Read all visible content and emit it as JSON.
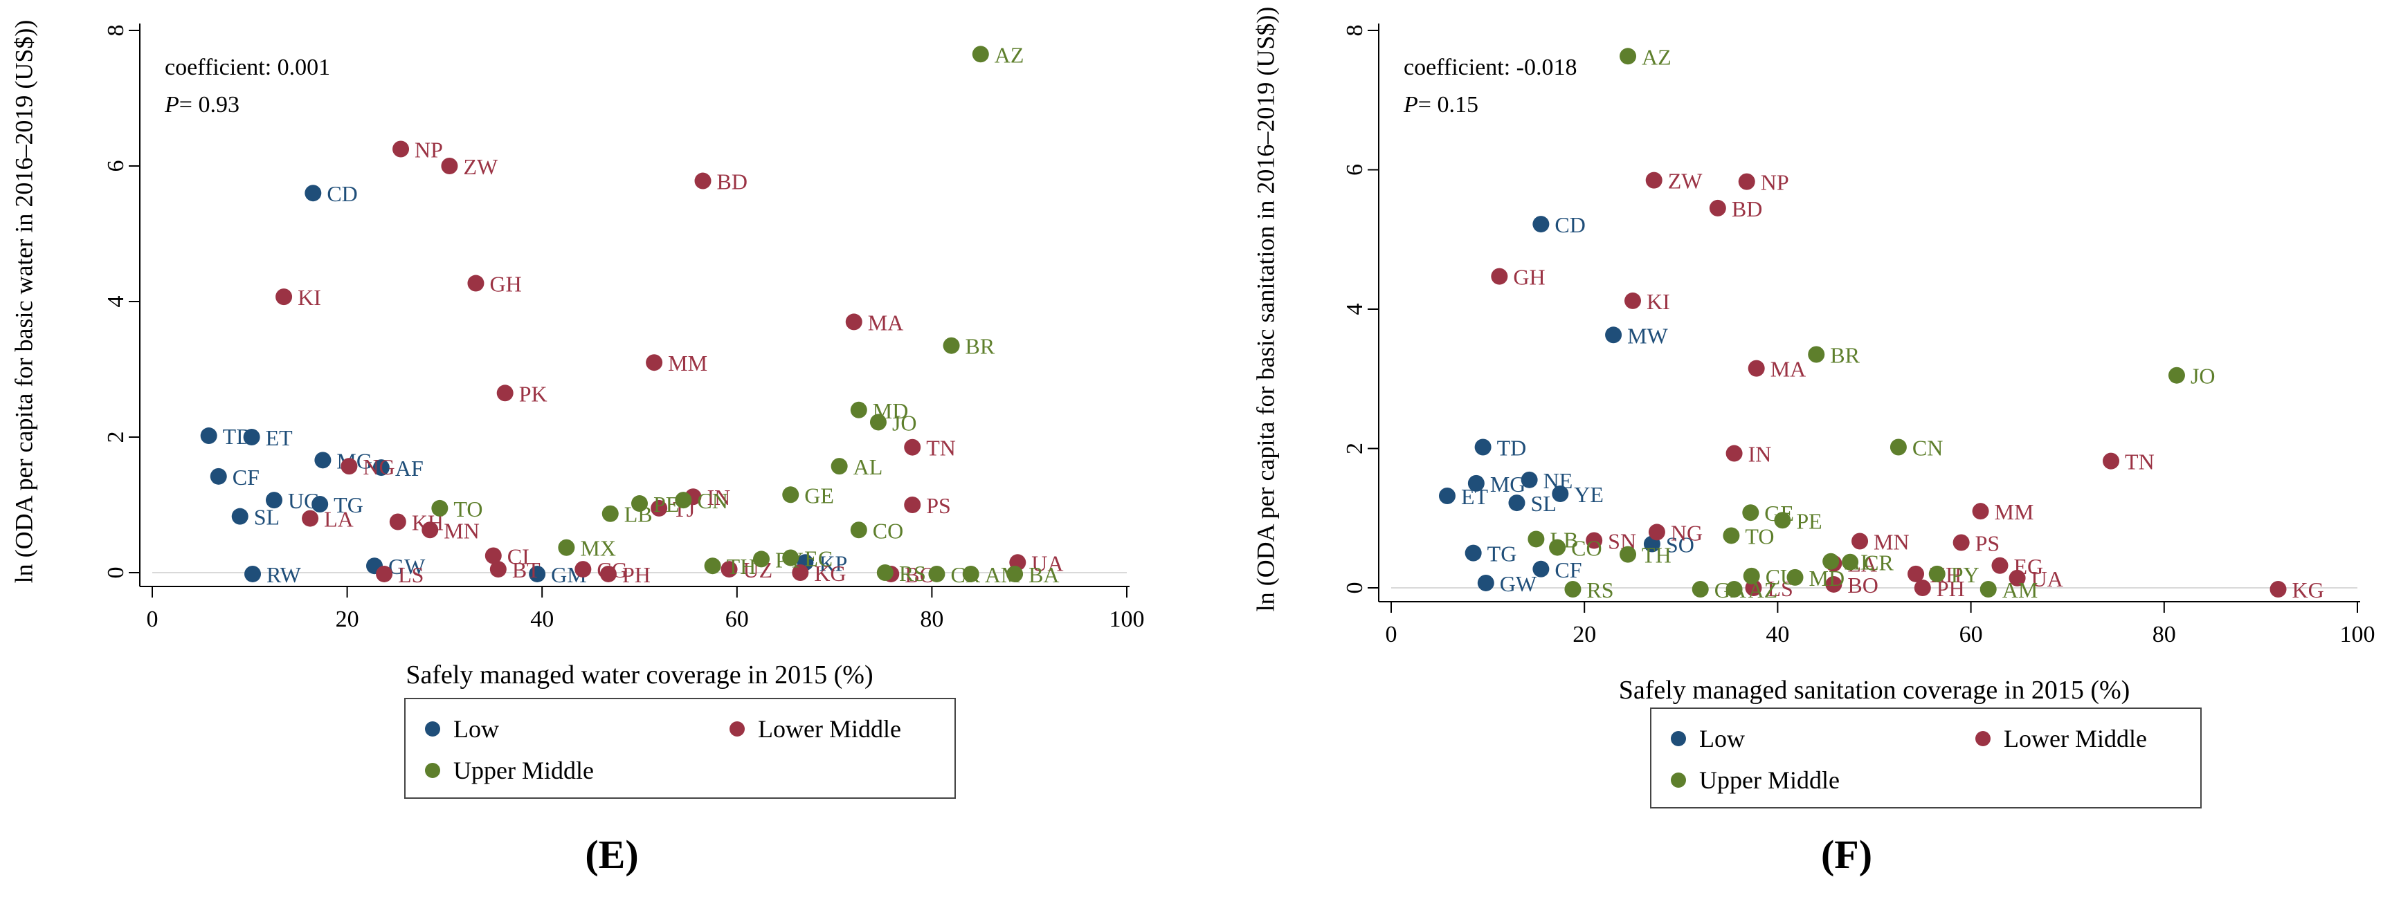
{
  "colors": {
    "Low": "#1f4e79",
    "Lower Middle": "#9b3344",
    "Upper Middle": "#5e7f2c",
    "axis": "#000000",
    "zero_line": "#d9d9d9",
    "legend_border": "#444444"
  },
  "chart_data": [
    {
      "type": "scatter",
      "panel": "E",
      "panel_label": "(E)",
      "xlabel": "Safely managed water coverage in 2015 (%)",
      "ylabel": "ln (ODA per capita for basic water in 2016–2019 (US$))",
      "xlim": [
        0,
        100
      ],
      "ylim": [
        0,
        8
      ],
      "xticks": [
        0,
        20,
        40,
        60,
        80,
        100
      ],
      "yticks": [
        0,
        2,
        4,
        6,
        8
      ],
      "annotation": {
        "coef_text": "coefficient: 0.001",
        "p_label": "P",
        "p_value": "= 0.93"
      },
      "legend": {
        "title": "",
        "entries": [
          "Low",
          "Lower Middle",
          "Upper Middle"
        ]
      },
      "points": [
        {
          "label": "CD",
          "group": "Low",
          "x": 16.5,
          "y": 5.6
        },
        {
          "label": "TD",
          "group": "Low",
          "x": 5.8,
          "y": 2.02
        },
        {
          "label": "ET",
          "group": "Low",
          "x": 10.2,
          "y": 2.0
        },
        {
          "label": "CF",
          "group": "Low",
          "x": 6.8,
          "y": 1.42
        },
        {
          "label": "MG",
          "group": "Low",
          "x": 17.5,
          "y": 1.66
        },
        {
          "label": "AF",
          "group": "Low",
          "x": 23.5,
          "y": 1.55
        },
        {
          "label": "UG",
          "group": "Low",
          "x": 12.5,
          "y": 1.07
        },
        {
          "label": "TG",
          "group": "Low",
          "x": 17.2,
          "y": 1.01
        },
        {
          "label": "SL",
          "group": "Low",
          "x": 9.0,
          "y": 0.83
        },
        {
          "label": "RW",
          "group": "Low",
          "x": 10.3,
          "y": -0.02
        },
        {
          "label": "GW",
          "group": "Low",
          "x": 22.8,
          "y": 0.1
        },
        {
          "label": "GM",
          "group": "Low",
          "x": 39.5,
          "y": -0.02
        },
        {
          "label": "KP",
          "group": "Low",
          "x": 67.0,
          "y": 0.15
        },
        {
          "label": "NP",
          "group": "Lower Middle",
          "x": 25.5,
          "y": 6.25
        },
        {
          "label": "ZW",
          "group": "Lower Middle",
          "x": 30.5,
          "y": 6.0
        },
        {
          "label": "BD",
          "group": "Lower Middle",
          "x": 56.5,
          "y": 5.78
        },
        {
          "label": "KI",
          "group": "Lower Middle",
          "x": 13.5,
          "y": 4.07
        },
        {
          "label": "GH",
          "group": "Lower Middle",
          "x": 33.2,
          "y": 4.27
        },
        {
          "label": "MA",
          "group": "Lower Middle",
          "x": 72.0,
          "y": 3.7
        },
        {
          "label": "MM",
          "group": "Lower Middle",
          "x": 51.5,
          "y": 3.1
        },
        {
          "label": "PK",
          "group": "Lower Middle",
          "x": 36.2,
          "y": 2.65
        },
        {
          "label": "TN",
          "group": "Lower Middle",
          "x": 78.0,
          "y": 1.85
        },
        {
          "label": "NG",
          "group": "Lower Middle",
          "x": 20.2,
          "y": 1.57
        },
        {
          "label": "PS",
          "group": "Lower Middle",
          "x": 78.0,
          "y": 1.0
        },
        {
          "label": "LA",
          "group": "Lower Middle",
          "x": 16.2,
          "y": 0.8
        },
        {
          "label": "KH",
          "group": "Lower Middle",
          "x": 25.2,
          "y": 0.75
        },
        {
          "label": "MN",
          "group": "Lower Middle",
          "x": 28.5,
          "y": 0.63
        },
        {
          "label": "CI",
          "group": "Lower Middle",
          "x": 35.0,
          "y": 0.25
        },
        {
          "label": "BT",
          "group": "Lower Middle",
          "x": 35.5,
          "y": 0.05
        },
        {
          "label": "LS",
          "group": "Lower Middle",
          "x": 23.8,
          "y": -0.02
        },
        {
          "label": "CG",
          "group": "Lower Middle",
          "x": 44.2,
          "y": 0.05
        },
        {
          "label": "PH",
          "group": "Lower Middle",
          "x": 46.8,
          "y": -0.02
        },
        {
          "label": "TJ",
          "group": "Lower Middle",
          "x": 52.0,
          "y": 0.95
        },
        {
          "label": "IN",
          "group": "Lower Middle",
          "x": 55.5,
          "y": 1.12
        },
        {
          "label": "UZ",
          "group": "Lower Middle",
          "x": 59.2,
          "y": 0.05
        },
        {
          "label": "KG",
          "group": "Lower Middle",
          "x": 66.5,
          "y": 0.0
        },
        {
          "label": "BO",
          "group": "Lower Middle",
          "x": 75.8,
          "y": -0.02
        },
        {
          "label": "UA",
          "group": "Lower Middle",
          "x": 88.8,
          "y": 0.15
        },
        {
          "label": "AZ",
          "group": "Upper Middle",
          "x": 85.0,
          "y": 7.65
        },
        {
          "label": "BR",
          "group": "Upper Middle",
          "x": 82.0,
          "y": 3.35
        },
        {
          "label": "MD",
          "group": "Upper Middle",
          "x": 72.5,
          "y": 2.4
        },
        {
          "label": "JO",
          "group": "Upper Middle",
          "x": 74.5,
          "y": 2.22
        },
        {
          "label": "AL",
          "group": "Upper Middle",
          "x": 70.5,
          "y": 1.57
        },
        {
          "label": "GE",
          "group": "Upper Middle",
          "x": 65.5,
          "y": 1.15
        },
        {
          "label": "TO",
          "group": "Upper Middle",
          "x": 29.5,
          "y": 0.95
        },
        {
          "label": "LB",
          "group": "Upper Middle",
          "x": 47.0,
          "y": 0.87
        },
        {
          "label": "PE",
          "group": "Upper Middle",
          "x": 50.0,
          "y": 1.02
        },
        {
          "label": "CN",
          "group": "Upper Middle",
          "x": 54.5,
          "y": 1.07
        },
        {
          "label": "CO",
          "group": "Upper Middle",
          "x": 72.5,
          "y": 0.63
        },
        {
          "label": "MX",
          "group": "Upper Middle",
          "x": 42.5,
          "y": 0.37
        },
        {
          "label": "PY",
          "group": "Upper Middle",
          "x": 62.5,
          "y": 0.2
        },
        {
          "label": "EC",
          "group": "Upper Middle",
          "x": 65.5,
          "y": 0.22
        },
        {
          "label": "TH",
          "group": "Upper Middle",
          "x": 57.5,
          "y": 0.1
        },
        {
          "label": "RS",
          "group": "Upper Middle",
          "x": 75.2,
          "y": 0.0
        },
        {
          "label": "CR",
          "group": "Upper Middle",
          "x": 80.5,
          "y": -0.02
        },
        {
          "label": "AM",
          "group": "Upper Middle",
          "x": 84.0,
          "y": -0.02
        },
        {
          "label": "BA",
          "group": "Upper Middle",
          "x": 88.5,
          "y": -0.02
        }
      ]
    },
    {
      "type": "scatter",
      "panel": "F",
      "panel_label": "(F)",
      "xlabel": "Safely managed sanitation coverage in 2015 (%)",
      "ylabel": "ln (ODA per capita for basic sanitation in 2016–2019 (US$))",
      "xlim": [
        0,
        100
      ],
      "ylim": [
        0,
        8
      ],
      "xticks": [
        0,
        20,
        40,
        60,
        80,
        100
      ],
      "yticks": [
        0,
        2,
        4,
        6,
        8
      ],
      "annotation": {
        "coef_text": "coefficient: -0.018",
        "p_label": "P",
        "p_value": "= 0.15"
      },
      "legend": {
        "title": "",
        "entries": [
          "Low",
          "Lower Middle",
          "Upper Middle"
        ]
      },
      "points": [
        {
          "label": "CD",
          "group": "Low",
          "x": 15.5,
          "y": 5.22
        },
        {
          "label": "MW",
          "group": "Low",
          "x": 23.0,
          "y": 3.63
        },
        {
          "label": "TD",
          "group": "Low",
          "x": 9.5,
          "y": 2.02
        },
        {
          "label": "NE",
          "group": "Low",
          "x": 14.3,
          "y": 1.55
        },
        {
          "label": "MG",
          "group": "Low",
          "x": 8.8,
          "y": 1.5
        },
        {
          "label": "YE",
          "group": "Low",
          "x": 17.5,
          "y": 1.35
        },
        {
          "label": "ET",
          "group": "Low",
          "x": 5.8,
          "y": 1.32
        },
        {
          "label": "SL",
          "group": "Low",
          "x": 13.0,
          "y": 1.22
        },
        {
          "label": "SO",
          "group": "Low",
          "x": 27.0,
          "y": 0.63
        },
        {
          "label": "TG",
          "group": "Low",
          "x": 8.5,
          "y": 0.5
        },
        {
          "label": "CF",
          "group": "Low",
          "x": 15.5,
          "y": 0.27
        },
        {
          "label": "GW",
          "group": "Low",
          "x": 9.8,
          "y": 0.07
        },
        {
          "label": "ZW",
          "group": "Lower Middle",
          "x": 27.2,
          "y": 5.85
        },
        {
          "label": "NP",
          "group": "Lower Middle",
          "x": 36.8,
          "y": 5.83
        },
        {
          "label": "BD",
          "group": "Lower Middle",
          "x": 33.8,
          "y": 5.45
        },
        {
          "label": "GH",
          "group": "Lower Middle",
          "x": 11.2,
          "y": 4.47
        },
        {
          "label": "KI",
          "group": "Lower Middle",
          "x": 25.0,
          "y": 4.12
        },
        {
          "label": "MA",
          "group": "Lower Middle",
          "x": 37.8,
          "y": 3.15
        },
        {
          "label": "IN",
          "group": "Lower Middle",
          "x": 35.5,
          "y": 1.93
        },
        {
          "label": "TN",
          "group": "Lower Middle",
          "x": 74.5,
          "y": 1.82
        },
        {
          "label": "MM",
          "group": "Lower Middle",
          "x": 61.0,
          "y": 1.1
        },
        {
          "label": "NG",
          "group": "Lower Middle",
          "x": 27.5,
          "y": 0.8
        },
        {
          "label": "SN",
          "group": "Lower Middle",
          "x": 21.0,
          "y": 0.68
        },
        {
          "label": "MN",
          "group": "Lower Middle",
          "x": 48.5,
          "y": 0.67
        },
        {
          "label": "PS",
          "group": "Lower Middle",
          "x": 59.0,
          "y": 0.65
        },
        {
          "label": "EG",
          "group": "Lower Middle",
          "x": 63.0,
          "y": 0.32
        },
        {
          "label": "UA",
          "group": "Lower Middle",
          "x": 64.8,
          "y": 0.14
        },
        {
          "label": "LA",
          "group": "Lower Middle",
          "x": 45.8,
          "y": 0.35
        },
        {
          "label": "BO",
          "group": "Lower Middle",
          "x": 45.8,
          "y": 0.05
        },
        {
          "label": "KH",
          "group": "Lower Middle",
          "x": 54.3,
          "y": 0.2
        },
        {
          "label": "PH",
          "group": "Lower Middle",
          "x": 55.0,
          "y": 0.0
        },
        {
          "label": "LS",
          "group": "Lower Middle",
          "x": 37.5,
          "y": 0.0
        },
        {
          "label": "KG",
          "group": "Lower Middle",
          "x": 91.8,
          "y": -0.02
        },
        {
          "label": "BR",
          "group": "Upper Middle",
          "x": 44.0,
          "y": 3.35
        },
        {
          "label": "JO",
          "group": "Upper Middle",
          "x": 81.3,
          "y": 3.05
        },
        {
          "label": "CN",
          "group": "Upper Middle",
          "x": 52.5,
          "y": 2.02
        },
        {
          "label": "GE",
          "group": "Upper Middle",
          "x": 37.2,
          "y": 1.08
        },
        {
          "label": "PE",
          "group": "Upper Middle",
          "x": 40.5,
          "y": 0.97
        },
        {
          "label": "TO",
          "group": "Upper Middle",
          "x": 35.2,
          "y": 0.75
        },
        {
          "label": "LB",
          "group": "Upper Middle",
          "x": 15.0,
          "y": 0.7
        },
        {
          "label": "CO",
          "group": "Upper Middle",
          "x": 17.2,
          "y": 0.58
        },
        {
          "label": "TH",
          "group": "Upper Middle",
          "x": 24.5,
          "y": 0.48
        },
        {
          "label": "AL",
          "group": "Upper Middle",
          "x": 45.5,
          "y": 0.38
        },
        {
          "label": "CR",
          "group": "Upper Middle",
          "x": 47.5,
          "y": 0.37
        },
        {
          "label": "CU",
          "group": "Upper Middle",
          "x": 37.3,
          "y": 0.17
        },
        {
          "label": "MD",
          "group": "Upper Middle",
          "x": 41.8,
          "y": 0.15
        },
        {
          "label": "PY",
          "group": "Upper Middle",
          "x": 56.5,
          "y": 0.2
        },
        {
          "label": "RS",
          "group": "Upper Middle",
          "x": 18.8,
          "y": -0.02
        },
        {
          "label": "GA",
          "group": "Upper Middle",
          "x": 32.0,
          "y": -0.02
        },
        {
          "label": "AZ",
          "group": "Upper Middle",
          "x": 35.5,
          "y": -0.02
        },
        {
          "label": "AM",
          "group": "Upper Middle",
          "x": 61.8,
          "y": -0.02
        }
      ]
    },
    {
      "type": "scatter_inset_note",
      "panel": "F-top",
      "points": [
        {
          "label": "AZ",
          "group": "Upper Middle",
          "x": 24.5,
          "y": 7.63
        }
      ]
    }
  ]
}
